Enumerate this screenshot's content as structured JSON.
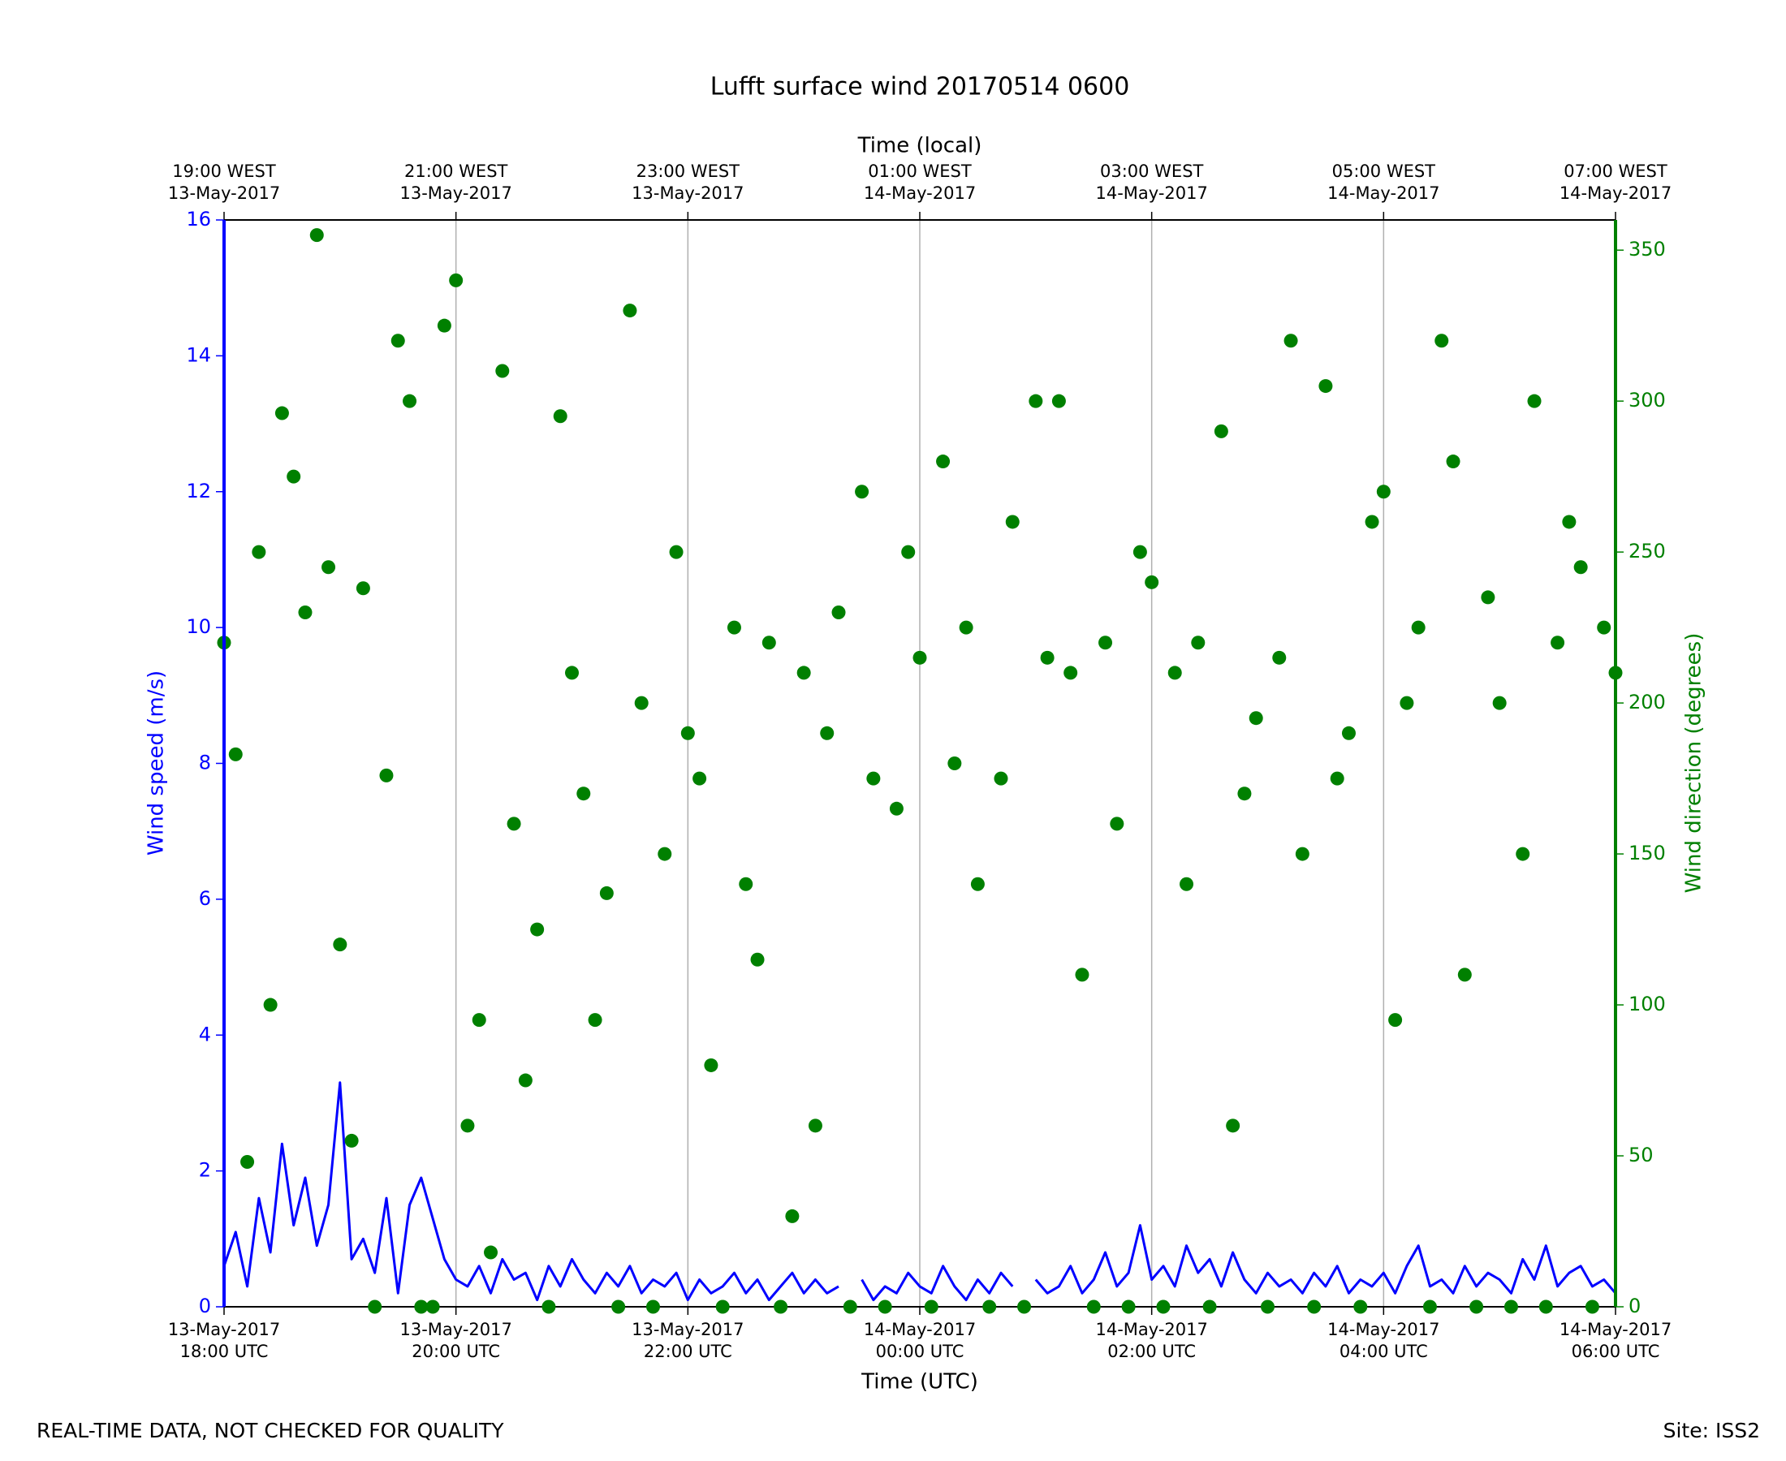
{
  "chart_data": {
    "type": "line",
    "title": "Lufft surface wind 20170514 0600",
    "xlabel": "Time (UTC)",
    "x2label": "Time (local)",
    "ylabel": "Wind speed (m/s)",
    "y2label": "Wind direction (degrees)",
    "annotations": [
      "REAL-TIME DATA, NOT CHECKED FOR QUALITY",
      "Site: ISS2"
    ],
    "grid": true,
    "xlim": [
      "2017-05-13 18:00",
      "2017-05-14 06:00"
    ],
    "xticks": [
      {
        "value": "2017-05-13 18:00",
        "label": [
          "13-May-2017",
          "18:00 UTC"
        ]
      },
      {
        "value": "2017-05-13 20:00",
        "label": [
          "13-May-2017",
          "20:00 UTC"
        ]
      },
      {
        "value": "2017-05-13 22:00",
        "label": [
          "13-May-2017",
          "22:00 UTC"
        ]
      },
      {
        "value": "2017-05-14 00:00",
        "label": [
          "14-May-2017",
          "00:00 UTC"
        ]
      },
      {
        "value": "2017-05-14 02:00",
        "label": [
          "14-May-2017",
          "02:00 UTC"
        ]
      },
      {
        "value": "2017-05-14 04:00",
        "label": [
          "14-May-2017",
          "04:00 UTC"
        ]
      },
      {
        "value": "2017-05-14 06:00",
        "label": [
          "14-May-2017",
          "06:00 UTC"
        ]
      }
    ],
    "x2ticks": [
      {
        "value": "2017-05-13 18:00",
        "label": [
          "19:00 WEST",
          "13-May-2017"
        ]
      },
      {
        "value": "2017-05-13 20:00",
        "label": [
          "21:00 WEST",
          "13-May-2017"
        ]
      },
      {
        "value": "2017-05-13 22:00",
        "label": [
          "23:00 WEST",
          "13-May-2017"
        ]
      },
      {
        "value": "2017-05-14 00:00",
        "label": [
          "01:00 WEST",
          "14-May-2017"
        ]
      },
      {
        "value": "2017-05-14 02:00",
        "label": [
          "03:00 WEST",
          "14-May-2017"
        ]
      },
      {
        "value": "2017-05-14 04:00",
        "label": [
          "05:00 WEST",
          "14-May-2017"
        ]
      },
      {
        "value": "2017-05-14 06:00",
        "label": [
          "07:00 WEST",
          "14-May-2017"
        ]
      }
    ],
    "ylim": [
      0,
      16
    ],
    "yticks": [
      0,
      2,
      4,
      6,
      8,
      10,
      12,
      14,
      16
    ],
    "y2lim": [
      0,
      360
    ],
    "y2ticks": [
      0,
      50,
      100,
      150,
      200,
      250,
      300,
      350
    ],
    "x": [
      "2017-05-13 18:00",
      "2017-05-13 18:06",
      "2017-05-13 18:12",
      "2017-05-13 18:18",
      "2017-05-13 18:24",
      "2017-05-13 18:30",
      "2017-05-13 18:36",
      "2017-05-13 18:42",
      "2017-05-13 18:48",
      "2017-05-13 18:54",
      "2017-05-13 19:00",
      "2017-05-13 19:06",
      "2017-05-13 19:12",
      "2017-05-13 19:18",
      "2017-05-13 19:24",
      "2017-05-13 19:30",
      "2017-05-13 19:36",
      "2017-05-13 19:42",
      "2017-05-13 19:48",
      "2017-05-13 19:54",
      "2017-05-13 20:00",
      "2017-05-13 20:06",
      "2017-05-13 20:12",
      "2017-05-13 20:18",
      "2017-05-13 20:24",
      "2017-05-13 20:30",
      "2017-05-13 20:36",
      "2017-05-13 20:42",
      "2017-05-13 20:48",
      "2017-05-13 20:54",
      "2017-05-13 21:00",
      "2017-05-13 21:06",
      "2017-05-13 21:12",
      "2017-05-13 21:18",
      "2017-05-13 21:24",
      "2017-05-13 21:30",
      "2017-05-13 21:36",
      "2017-05-13 21:42",
      "2017-05-13 21:48",
      "2017-05-13 21:54",
      "2017-05-13 22:00",
      "2017-05-13 22:06",
      "2017-05-13 22:12",
      "2017-05-13 22:18",
      "2017-05-13 22:24",
      "2017-05-13 22:30",
      "2017-05-13 22:36",
      "2017-05-13 22:42",
      "2017-05-13 22:48",
      "2017-05-13 22:54",
      "2017-05-13 23:00",
      "2017-05-13 23:06",
      "2017-05-13 23:12",
      "2017-05-13 23:18",
      "2017-05-13 23:24",
      "2017-05-13 23:30",
      "2017-05-13 23:36",
      "2017-05-13 23:42",
      "2017-05-13 23:48",
      "2017-05-13 23:54",
      "2017-05-14 00:00",
      "2017-05-14 00:06",
      "2017-05-14 00:12",
      "2017-05-14 00:18",
      "2017-05-14 00:24",
      "2017-05-14 00:30",
      "2017-05-14 00:36",
      "2017-05-14 00:42",
      "2017-05-14 00:48",
      "2017-05-14 00:54",
      "2017-05-14 01:00",
      "2017-05-14 01:06",
      "2017-05-14 01:12",
      "2017-05-14 01:18",
      "2017-05-14 01:24",
      "2017-05-14 01:30",
      "2017-05-14 01:36",
      "2017-05-14 01:42",
      "2017-05-14 01:48",
      "2017-05-14 01:54",
      "2017-05-14 02:00",
      "2017-05-14 02:06",
      "2017-05-14 02:12",
      "2017-05-14 02:18",
      "2017-05-14 02:24",
      "2017-05-14 02:30",
      "2017-05-14 02:36",
      "2017-05-14 02:42",
      "2017-05-14 02:48",
      "2017-05-14 02:54",
      "2017-05-14 03:00",
      "2017-05-14 03:06",
      "2017-05-14 03:12",
      "2017-05-14 03:18",
      "2017-05-14 03:24",
      "2017-05-14 03:30",
      "2017-05-14 03:36",
      "2017-05-14 03:42",
      "2017-05-14 03:48",
      "2017-05-14 03:54",
      "2017-05-14 04:00",
      "2017-05-14 04:06",
      "2017-05-14 04:12",
      "2017-05-14 04:18",
      "2017-05-14 04:24",
      "2017-05-14 04:30",
      "2017-05-14 04:36",
      "2017-05-14 04:42",
      "2017-05-14 04:48",
      "2017-05-14 04:54",
      "2017-05-14 05:00",
      "2017-05-14 05:06",
      "2017-05-14 05:12",
      "2017-05-14 05:18",
      "2017-05-14 05:24",
      "2017-05-14 05:30",
      "2017-05-14 05:36",
      "2017-05-14 05:42",
      "2017-05-14 05:48",
      "2017-05-14 05:54",
      "2017-05-14 06:00"
    ],
    "series": [
      {
        "name": "Wind speed",
        "type": "line",
        "color": "#0000ff",
        "values": [
          0.6,
          1.1,
          0.3,
          1.6,
          0.8,
          2.4,
          1.2,
          1.9,
          0.9,
          1.5,
          3.3,
          0.7,
          1.0,
          0.5,
          1.6,
          0.2,
          1.5,
          1.9,
          1.3,
          0.7,
          0.4,
          0.3,
          0.6,
          0.2,
          0.7,
          0.4,
          0.5,
          0.1,
          0.6,
          0.3,
          0.7,
          0.4,
          0.2,
          0.5,
          0.3,
          0.6,
          0.2,
          0.4,
          0.3,
          0.5,
          0.1,
          0.4,
          0.2,
          0.3,
          0.5,
          0.2,
          0.4,
          0.1,
          0.3,
          0.5,
          0.2,
          0.4,
          0.2,
          0.3,
          null,
          0.4,
          0.1,
          0.3,
          0.2,
          0.5,
          0.3,
          0.2,
          0.6,
          0.3,
          0.1,
          0.4,
          0.2,
          0.5,
          0.3,
          null,
          0.4,
          0.2,
          0.3,
          0.6,
          0.2,
          0.4,
          0.8,
          0.3,
          0.5,
          1.2,
          0.4,
          0.6,
          0.3,
          0.9,
          0.5,
          0.7,
          0.3,
          0.8,
          0.4,
          0.2,
          0.5,
          0.3,
          0.4,
          0.2,
          0.5,
          0.3,
          0.6,
          0.2,
          0.4,
          0.3,
          0.5,
          0.2,
          0.6,
          0.9,
          0.3,
          0.4,
          0.2,
          0.6,
          0.3,
          0.5,
          0.4,
          0.2,
          0.7,
          0.4,
          0.9,
          0.3,
          0.5,
          0.6,
          0.3,
          0.4,
          0.2
        ]
      },
      {
        "name": "Wind direction",
        "type": "scatter",
        "axis": "y2",
        "color": "#008000",
        "values": [
          220,
          183,
          48,
          250,
          100,
          296,
          275,
          230,
          355,
          245,
          120,
          55,
          238,
          0,
          176,
          320,
          300,
          0,
          0,
          325,
          340,
          60,
          95,
          18,
          310,
          160,
          75,
          125,
          0,
          295,
          210,
          170,
          95,
          137,
          0,
          330,
          200,
          0,
          150,
          250,
          190,
          175,
          80,
          0,
          225,
          140,
          115,
          220,
          0,
          30,
          210,
          60,
          190,
          230,
          0,
          270,
          175,
          0,
          165,
          250,
          215,
          0,
          280,
          180,
          225,
          140,
          0,
          175,
          260,
          0,
          300,
          215,
          300,
          210,
          110,
          0,
          220,
          160,
          0,
          250,
          240,
          0,
          210,
          140,
          220,
          0,
          290,
          60,
          170,
          195,
          0,
          215,
          320,
          150,
          0,
          305,
          175,
          190,
          0,
          260,
          270,
          95,
          200,
          225,
          0,
          320,
          280,
          110,
          0,
          235,
          200,
          0,
          150,
          300,
          0,
          220,
          260,
          245,
          0,
          225,
          210
        ]
      }
    ]
  }
}
